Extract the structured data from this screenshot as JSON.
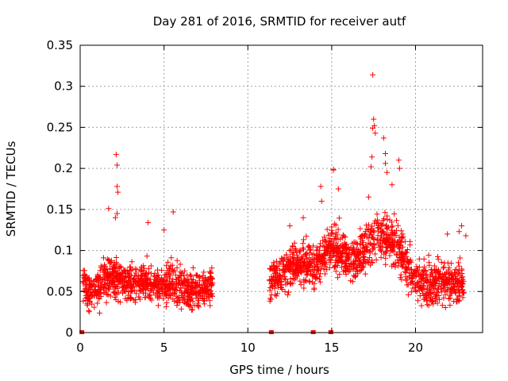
{
  "chart_data": {
    "type": "scatter",
    "title": "Day 281 of 2016, SRMTID for receiver autf",
    "xlabel": "GPS time / hours",
    "ylabel": "SRMTID / TECUs",
    "xlim": [
      0,
      24
    ],
    "ylim": [
      0,
      0.35
    ],
    "xticks": [
      0,
      5,
      10,
      15,
      20
    ],
    "yticks": [
      0,
      0.05,
      0.1,
      0.15,
      0.2,
      0.25,
      0.3,
      0.35
    ],
    "xtick_labels": [
      "0",
      "5",
      "10",
      "15",
      "20"
    ],
    "ytick_labels": [
      "0",
      "0.05",
      "0.1",
      "0.15",
      "0.2",
      "0.25",
      "0.3",
      "0.35"
    ],
    "grid": true,
    "marker": "+",
    "color": "#ff0000",
    "zero_flags": [
      0.1,
      11.4,
      13.9,
      14.95
    ],
    "series": [
      {
        "name": "SRMTID",
        "segments": [
          {
            "x_start": 0.1,
            "x_end": 7.9,
            "profile": [
              [
                0.1,
                0.07
              ],
              [
                0.5,
                0.045
              ],
              [
                1.0,
                0.055
              ],
              [
                1.5,
                0.065
              ],
              [
                2.0,
                0.068
              ],
              [
                2.5,
                0.064
              ],
              [
                3.0,
                0.058
              ],
              [
                3.5,
                0.06
              ],
              [
                4.0,
                0.062
              ],
              [
                4.5,
                0.06
              ],
              [
                5.0,
                0.058
              ],
              [
                5.5,
                0.06
              ],
              [
                6.0,
                0.055
              ],
              [
                6.5,
                0.053
              ],
              [
                7.0,
                0.05
              ],
              [
                7.5,
                0.055
              ],
              [
                7.9,
                0.055
              ]
            ],
            "spread": 0.022
          },
          {
            "x_start": 11.3,
            "x_end": 22.9,
            "profile": [
              [
                11.3,
                0.065
              ],
              [
                12.0,
                0.07
              ],
              [
                12.5,
                0.078
              ],
              [
                13.0,
                0.082
              ],
              [
                13.5,
                0.085
              ],
              [
                14.0,
                0.08
              ],
              [
                14.5,
                0.092
              ],
              [
                15.0,
                0.105
              ],
              [
                15.5,
                0.1
              ],
              [
                16.0,
                0.092
              ],
              [
                16.5,
                0.09
              ],
              [
                17.0,
                0.1
              ],
              [
                17.5,
                0.112
              ],
              [
                18.0,
                0.122
              ],
              [
                18.5,
                0.112
              ],
              [
                19.0,
                0.105
              ],
              [
                19.5,
                0.078
              ],
              [
                20.0,
                0.065
              ],
              [
                20.5,
                0.06
              ],
              [
                21.0,
                0.058
              ],
              [
                21.5,
                0.064
              ],
              [
                22.0,
                0.062
              ],
              [
                22.5,
                0.06
              ],
              [
                22.9,
                0.062
              ]
            ],
            "spread": 0.026
          }
        ],
        "outliers": [
          [
            2.15,
            0.217
          ],
          [
            2.2,
            0.204
          ],
          [
            2.2,
            0.178
          ],
          [
            2.25,
            0.171
          ],
          [
            2.2,
            0.145
          ],
          [
            2.1,
            0.14
          ],
          [
            1.7,
            0.151
          ],
          [
            5.55,
            0.147
          ],
          [
            4.05,
            0.134
          ],
          [
            5.0,
            0.125
          ],
          [
            14.4,
            0.16
          ],
          [
            14.35,
            0.178
          ],
          [
            15.1,
            0.198
          ],
          [
            15.1,
            0.199
          ],
          [
            15.4,
            0.175
          ],
          [
            17.45,
            0.314
          ],
          [
            17.5,
            0.26
          ],
          [
            17.55,
            0.252
          ],
          [
            17.45,
            0.249
          ],
          [
            17.6,
            0.243
          ],
          [
            17.4,
            0.214
          ],
          [
            17.35,
            0.202
          ],
          [
            18.1,
            0.237
          ],
          [
            18.2,
            0.218
          ],
          [
            18.2,
            0.206
          ],
          [
            18.3,
            0.195
          ],
          [
            18.6,
            0.18
          ],
          [
            19.0,
            0.21
          ],
          [
            19.05,
            0.2
          ],
          [
            17.2,
            0.165
          ],
          [
            22.75,
            0.13
          ],
          [
            22.6,
            0.123
          ],
          [
            21.9,
            0.12
          ],
          [
            23.0,
            0.118
          ],
          [
            13.3,
            0.14
          ],
          [
            12.5,
            0.13
          ]
        ]
      }
    ]
  }
}
